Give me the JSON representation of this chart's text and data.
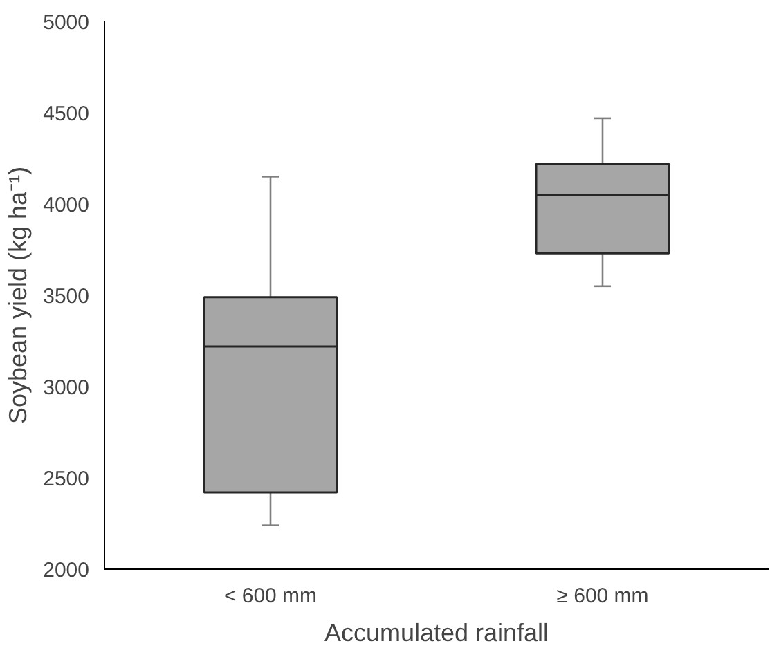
{
  "chart_data": {
    "type": "box",
    "xlabel": "Accumulated rainfall",
    "ylabel": "Soybean yield (kg ha⁻¹)",
    "categories": [
      "< 600 mm",
      "≥ 600 mm"
    ],
    "color": "#a6a6a6",
    "boxes": [
      {
        "low": 2240,
        "q1": 2420,
        "median": 3220,
        "q3": 3490,
        "high": 4150
      },
      {
        "low": 3550,
        "q1": 3730,
        "median": 4050,
        "q3": 4220,
        "high": 4470
      }
    ],
    "ylim": [
      2000,
      5000
    ],
    "yticks": [
      2000,
      2500,
      3000,
      3500,
      4000,
      4500,
      5000
    ],
    "grid": false
  }
}
